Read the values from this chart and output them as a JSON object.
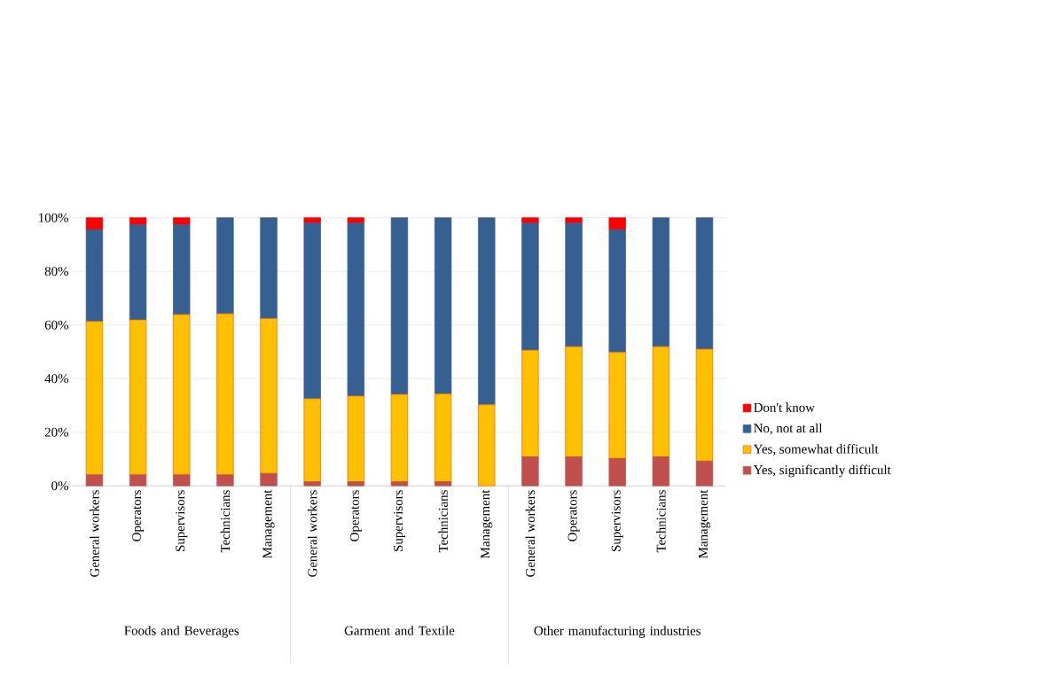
{
  "chart_data": {
    "type": "bar",
    "stacked": true,
    "categories": [
      "General workers",
      "Operators",
      "Supervisors",
      "Technicians",
      "Management",
      "General workers",
      "Operators",
      "Supervisors",
      "Technicians",
      "Management",
      "General workers",
      "Operators",
      "Supervisors",
      "Technicians",
      "Management"
    ],
    "series": [
      {
        "name": "Yes, significantly difficult",
        "color": "#c0504d",
        "values": [
          4.1,
          4.1,
          4.1,
          4.1,
          4.6,
          1.5,
          1.5,
          1.5,
          1.5,
          0,
          10.8,
          10.8,
          10.2,
          10.8,
          9.2
        ]
      },
      {
        "name": "Yes, somewhat difficult",
        "color": "#ffc000",
        "values": [
          57.2,
          57.8,
          59.8,
          60.1,
          57.8,
          31.0,
          32.0,
          32.6,
          32.8,
          30.2,
          39.8,
          41.1,
          39.6,
          41.1,
          41.8
        ]
      },
      {
        "name": "No, not at all",
        "color": "#376092",
        "values": [
          34.3,
          35.5,
          33.5,
          35.8,
          37.6,
          65.5,
          64.5,
          65.9,
          65.7,
          69.8,
          47.4,
          46.1,
          45.8,
          48.1,
          49.0
        ]
      },
      {
        "name": "Don't know",
        "color": "#ff0000",
        "values": [
          4.4,
          2.6,
          2.6,
          0,
          0,
          2.0,
          2.0,
          0,
          0,
          0,
          2.0,
          2.0,
          4.4,
          0,
          0
        ]
      }
    ],
    "ylim": [
      0,
      100
    ],
    "yticks": [
      {
        "value": 0,
        "label": "0%"
      },
      {
        "value": 20,
        "label": "20%"
      },
      {
        "value": 40,
        "label": "40%"
      },
      {
        "value": 60,
        "label": "60%"
      },
      {
        "value": 80,
        "label": "80%"
      },
      {
        "value": 100,
        "label": "100%"
      }
    ],
    "grid": "y",
    "legend": "right",
    "annotations": [
      "Foods and Beverages",
      "Garment and Textile",
      "Other manufacturing industries"
    ]
  }
}
